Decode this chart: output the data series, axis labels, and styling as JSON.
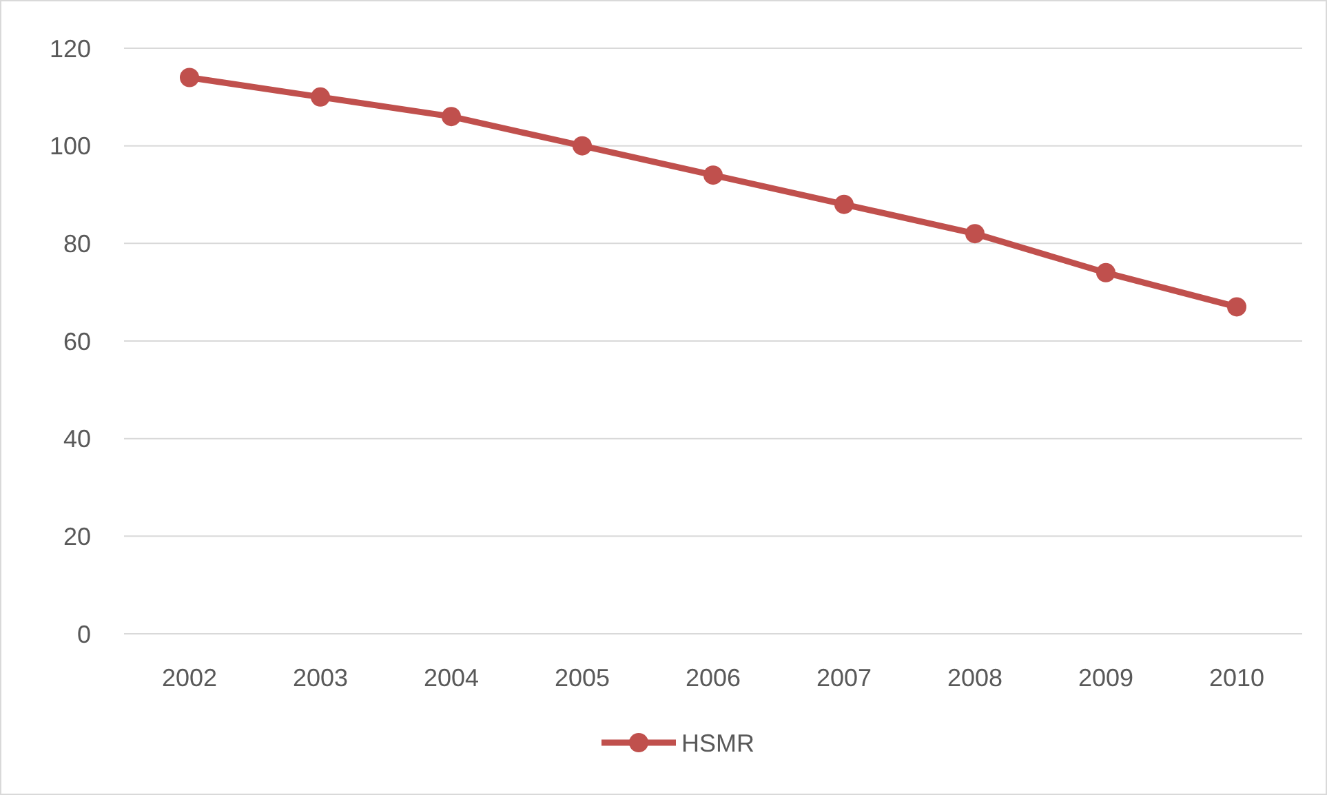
{
  "chart_data": {
    "type": "line",
    "categories": [
      "2002",
      "2003",
      "2004",
      "2005",
      "2006",
      "2007",
      "2008",
      "2009",
      "2010"
    ],
    "series": [
      {
        "name": "HSMR",
        "color": "#c0504d",
        "values": [
          114,
          110,
          106,
          100,
          94,
          88,
          82,
          74,
          67
        ]
      }
    ],
    "ylim": [
      0,
      120
    ],
    "yticks": [
      0,
      20,
      40,
      60,
      80,
      100,
      120
    ],
    "grid": "y",
    "legend": "bottom",
    "marker": "circle",
    "line_style": "solid"
  }
}
